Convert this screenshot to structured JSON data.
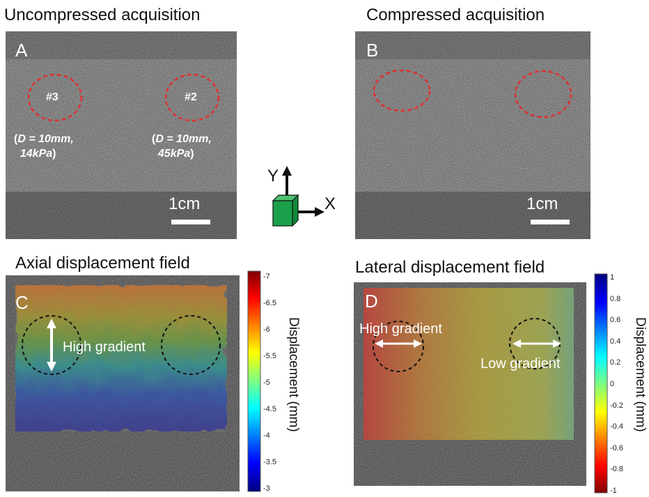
{
  "titles": {
    "a": "Uncompressed acquisition",
    "b": "Compressed acquisition",
    "c": "Axial displacement field",
    "d": "Lateral displacement field"
  },
  "panels": {
    "a": {
      "label": "A",
      "inclusion_left": {
        "id": "#3",
        "diam_prefix": "(",
        "diam": "D = 10mm,",
        "stiff": "14kPa",
        "stiff_suffix": ")"
      },
      "inclusion_right": {
        "id": "#2",
        "diam_prefix": "(",
        "diam": "D = 10mm,",
        "stiff": "45kPa",
        "stiff_suffix": ")"
      },
      "scale": "1cm"
    },
    "b": {
      "label": "B",
      "scale": "1cm"
    },
    "c": {
      "label": "C",
      "annotation": "High gradient"
    },
    "d": {
      "label": "D",
      "annotation_left": "High gradient",
      "annotation_right": "Low gradient"
    }
  },
  "axes": {
    "y": "Y",
    "x": "X"
  },
  "colorbar_axial": {
    "label": "Displacement (mm)",
    "ticks": [
      "-7",
      "-6.5",
      "-6",
      "-5.5",
      "-5",
      "-4.5",
      "-4",
      "-3.5",
      "-3"
    ]
  },
  "colorbar_lateral": {
    "label": "Displacement (mm)",
    "ticks": [
      "1",
      "0.8",
      "0.6",
      "0.4",
      "0.2",
      "0",
      "-0.2",
      "-0.4",
      "-0.6",
      "-0.8",
      "-1"
    ]
  },
  "colors": {
    "circle_red": "#e03030",
    "cube_green": "#1aa04a"
  }
}
